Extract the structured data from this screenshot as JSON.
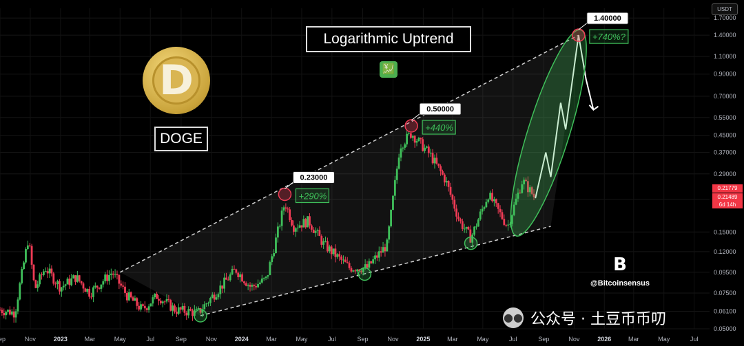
{
  "title": "Logarithmic Uptrend",
  "coin_label": "DOGE",
  "currency_unit": "USDT",
  "current_price": "0.21779",
  "price_tag_2": "0.21489",
  "price_tag_2_time": "6d 14h",
  "brand_name": "@Bitcoinsensus",
  "brand_logo": "B",
  "watermark": "公众号 · 土豆币币叨",
  "coin_glyph": "D",
  "emoji_glyph": "💹",
  "colors": {
    "up": "#26a69a",
    "up_green": "#3fbf5a",
    "down": "#ef3b55",
    "accent": "#3fbf5a"
  },
  "chart_data": {
    "type": "candlestick",
    "yscale": "log",
    "ylim": [
      0.05,
      1.9
    ],
    "y_ticks": [
      "1.70000",
      "1.40000",
      "1.10000",
      "0.90000",
      "0.70000",
      "0.55000",
      "0.45000",
      "0.37000",
      "0.29000",
      "0.21779",
      "0.15000",
      "0.12000",
      "0.09500",
      "0.07500",
      "0.06100",
      "0.05000"
    ],
    "x_ticks": [
      "Sep",
      "Nov",
      "2023",
      "Mar",
      "May",
      "Jul",
      "Sep",
      "Nov",
      "2024",
      "Mar",
      "May",
      "Jul",
      "Sep",
      "Nov",
      "2025",
      "Mar",
      "May",
      "Jul",
      "Sep",
      "Nov",
      "2026",
      "Mar",
      "May",
      "Jul"
    ],
    "x_ticks_bold": [
      "2023",
      "2024",
      "2025",
      "2026"
    ],
    "x_range": [
      "2022-09-01",
      "2026-08-01"
    ],
    "series_close": [
      [
        "2022-09-01",
        0.062
      ],
      [
        "2022-10-01",
        0.06
      ],
      [
        "2022-10-28",
        0.14
      ],
      [
        "2022-11-10",
        0.078
      ],
      [
        "2022-12-01",
        0.1
      ],
      [
        "2023-01-01",
        0.08
      ],
      [
        "2023-02-01",
        0.09
      ],
      [
        "2023-03-01",
        0.075
      ],
      [
        "2023-04-15",
        0.095
      ],
      [
        "2023-05-15",
        0.073
      ],
      [
        "2023-06-15",
        0.062
      ],
      [
        "2023-07-15",
        0.073
      ],
      [
        "2023-08-20",
        0.062
      ],
      [
        "2023-10-05",
        0.06
      ],
      [
        "2023-11-15",
        0.078
      ],
      [
        "2023-12-20",
        0.098
      ],
      [
        "2024-01-20",
        0.08
      ],
      [
        "2024-02-20",
        0.088
      ],
      [
        "2024-03-28",
        0.21
      ],
      [
        "2024-04-15",
        0.16
      ],
      [
        "2024-05-15",
        0.17
      ],
      [
        "2024-06-15",
        0.13
      ],
      [
        "2024-08-05",
        0.1
      ],
      [
        "2024-09-10",
        0.1
      ],
      [
        "2024-10-20",
        0.13
      ],
      [
        "2024-11-15",
        0.4
      ],
      [
        "2024-12-08",
        0.46
      ],
      [
        "2025-01-15",
        0.36
      ],
      [
        "2025-02-15",
        0.27
      ],
      [
        "2025-03-15",
        0.17
      ],
      [
        "2025-04-07",
        0.14
      ],
      [
        "2025-05-12",
        0.23
      ],
      [
        "2025-06-20",
        0.16
      ],
      [
        "2025-07-20",
        0.27
      ],
      [
        "2025-08-15",
        0.22
      ]
    ],
    "projection": [
      [
        "2025-08-15",
        0.22
      ],
      [
        "2025-09-05",
        0.37
      ],
      [
        "2025-09-15",
        0.28
      ],
      [
        "2025-10-05",
        0.65
      ],
      [
        "2025-10-15",
        0.48
      ],
      [
        "2025-11-10",
        1.4
      ],
      [
        "2025-11-25",
        0.85
      ],
      [
        "2025-12-10",
        0.6
      ]
    ],
    "upper_trendline": [
      [
        "2023-05-01",
        0.095
      ],
      [
        "2025-11-10",
        1.4
      ]
    ],
    "lower_trendline": [
      [
        "2023-10-10",
        0.058
      ],
      [
        "2025-09-15",
        0.16
      ]
    ],
    "key_levels": [
      {
        "date": "2024-03-28",
        "price": 0.23,
        "label": "0.23000",
        "gain": "+290%"
      },
      {
        "date": "2024-12-08",
        "price": 0.5,
        "label": "0.50000",
        "gain": "+440%"
      },
      {
        "date": "2025-11-10",
        "price": 1.4,
        "label": "1.40000",
        "gain": "+740%?"
      }
    ],
    "lows_marked": [
      [
        "2023-10-10",
        0.058
      ],
      [
        "2024-09-05",
        0.093
      ],
      [
        "2025-04-07",
        0.132
      ]
    ]
  }
}
